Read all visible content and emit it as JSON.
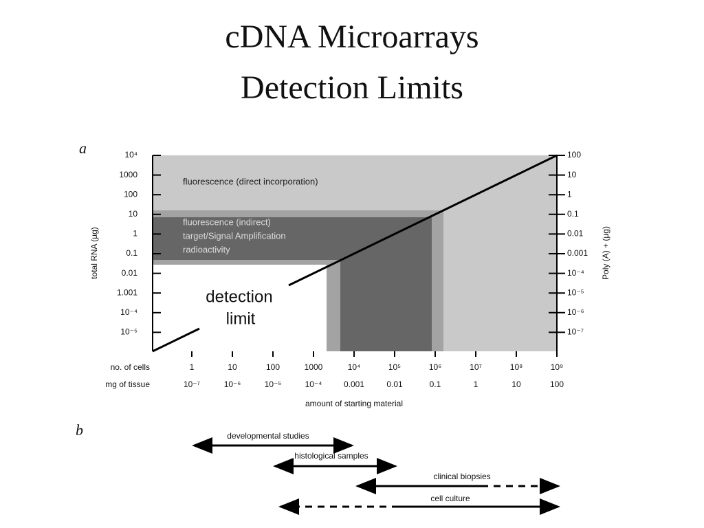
{
  "title": [
    "cDNA Microarrays",
    "Detection Limits"
  ],
  "panel_a": {
    "label": "a",
    "left_axis_label": "total RNA (µg)",
    "right_axis_label": "Poly (A) + (µg)",
    "left_ticks": [
      "10⁴",
      "1000",
      "100",
      "10",
      "1",
      "0.1",
      "0.01",
      "1.001",
      "10⁻⁴",
      "10⁻⁵"
    ],
    "right_ticks": [
      "100",
      "10",
      "1",
      "0.1",
      "0.01",
      "0.001",
      "10⁻⁴",
      "10⁻⁵",
      "10⁻⁶",
      "10⁻⁷"
    ],
    "row_labels": [
      "no. of cells",
      "mg of tissue"
    ],
    "cells": [
      "1",
      "10",
      "100",
      "1000",
      "10⁴",
      "10⁵",
      "10⁶",
      "10⁷",
      "10⁸",
      "10⁹"
    ],
    "tissue": [
      "10⁻⁷",
      "10⁻⁶",
      "10⁻⁵",
      "10⁻⁴",
      "0.001",
      "0.01",
      "0.1",
      "1",
      "10",
      "100"
    ],
    "x_axis_label": "amount of starting material",
    "regions": [
      "fluorescence (direct incorporation)",
      "fluorescence (indirect)",
      "target/Signal Amplification",
      "radioactivity"
    ],
    "detection_limit": [
      "detection",
      "limit"
    ]
  },
  "panel_b": {
    "label": "b",
    "ranges": [
      "developmental studies",
      "histological samples",
      "clinical biopsies",
      "cell culture"
    ]
  }
}
